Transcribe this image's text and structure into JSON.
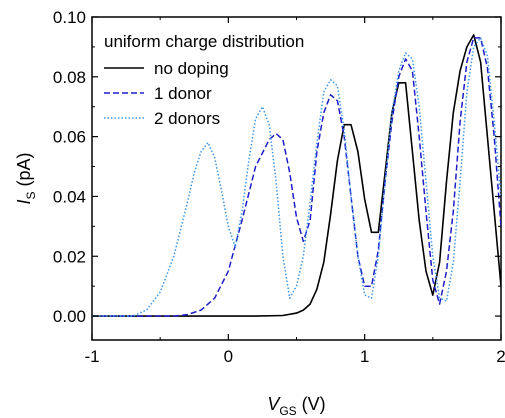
{
  "chart_data": {
    "type": "line",
    "title": "",
    "xlabel": {
      "main": "V",
      "sub": "GS",
      "unit": " (V)"
    },
    "ylabel": {
      "main": "I",
      "sub": "S",
      "unit": " (pA)"
    },
    "xlim": [
      -1,
      2
    ],
    "ylim": [
      -0.008,
      0.1
    ],
    "xticks": [
      -1,
      0,
      1,
      2
    ],
    "xtick_labels": [
      "-1",
      "0",
      "1",
      "2"
    ],
    "yticks": [
      0.0,
      0.02,
      0.04,
      0.06,
      0.08,
      0.1
    ],
    "ytick_labels": [
      "0.00",
      "0.02",
      "0.04",
      "0.06",
      "0.08",
      "0.10"
    ],
    "grid": false,
    "legend_position": "top-left",
    "legend_title": "uniform charge distribution",
    "series": [
      {
        "name": "no doping",
        "color": "#000000",
        "style": "solid",
        "x": [
          -1.0,
          0.2,
          0.4,
          0.5,
          0.55,
          0.6,
          0.65,
          0.7,
          0.75,
          0.8,
          0.85,
          0.9,
          0.95,
          1.0,
          1.05,
          1.1,
          1.15,
          1.2,
          1.25,
          1.3,
          1.35,
          1.4,
          1.45,
          1.5,
          1.55,
          1.6,
          1.65,
          1.7,
          1.75,
          1.8,
          1.85,
          1.9,
          1.95,
          2.0
        ],
        "y": [
          0.0,
          0.0,
          0.0002,
          0.001,
          0.002,
          0.004,
          0.009,
          0.018,
          0.034,
          0.052,
          0.064,
          0.064,
          0.055,
          0.039,
          0.028,
          0.028,
          0.048,
          0.068,
          0.078,
          0.078,
          0.055,
          0.032,
          0.015,
          0.007,
          0.018,
          0.045,
          0.068,
          0.082,
          0.09,
          0.094,
          0.085,
          0.06,
          0.035,
          0.01
        ]
      },
      {
        "name": "1 donor",
        "color": "#1e1ec8",
        "style": "dashed",
        "x": [
          -1.0,
          -0.4,
          -0.3,
          -0.2,
          -0.1,
          0.0,
          0.1,
          0.2,
          0.3,
          0.35,
          0.4,
          0.45,
          0.5,
          0.55,
          0.6,
          0.65,
          0.7,
          0.75,
          0.8,
          0.85,
          0.9,
          0.95,
          1.0,
          1.05,
          1.1,
          1.15,
          1.2,
          1.25,
          1.3,
          1.35,
          1.4,
          1.45,
          1.5,
          1.55,
          1.6,
          1.65,
          1.7,
          1.75,
          1.8,
          1.85,
          1.9,
          1.95,
          2.0
        ],
        "y": [
          0.0,
          0.0,
          0.0005,
          0.002,
          0.006,
          0.015,
          0.032,
          0.05,
          0.059,
          0.061,
          0.059,
          0.048,
          0.033,
          0.025,
          0.032,
          0.055,
          0.068,
          0.074,
          0.072,
          0.06,
          0.04,
          0.02,
          0.01,
          0.01,
          0.022,
          0.045,
          0.065,
          0.08,
          0.086,
          0.082,
          0.06,
          0.035,
          0.012,
          0.004,
          0.015,
          0.035,
          0.065,
          0.085,
          0.093,
          0.093,
          0.083,
          0.06,
          0.03
        ]
      },
      {
        "name": "2 donors",
        "color": "#3c96e6",
        "style": "dotted",
        "x": [
          -1.0,
          -0.7,
          -0.6,
          -0.5,
          -0.4,
          -0.3,
          -0.25,
          -0.2,
          -0.15,
          -0.1,
          -0.05,
          0.0,
          0.05,
          0.1,
          0.15,
          0.2,
          0.25,
          0.3,
          0.35,
          0.4,
          0.45,
          0.5,
          0.55,
          0.6,
          0.65,
          0.7,
          0.75,
          0.8,
          0.85,
          0.9,
          0.95,
          1.0,
          1.05,
          1.1,
          1.15,
          1.2,
          1.25,
          1.3,
          1.35,
          1.4,
          1.45,
          1.5,
          1.55,
          1.6,
          1.65,
          1.7,
          1.75,
          1.8,
          1.85,
          1.9,
          1.95,
          2.0
        ],
        "y": [
          0.0,
          0.0,
          0.002,
          0.008,
          0.02,
          0.038,
          0.048,
          0.055,
          0.058,
          0.053,
          0.042,
          0.03,
          0.023,
          0.035,
          0.052,
          0.066,
          0.07,
          0.064,
          0.045,
          0.02,
          0.006,
          0.01,
          0.02,
          0.038,
          0.058,
          0.075,
          0.079,
          0.077,
          0.062,
          0.04,
          0.02,
          0.007,
          0.006,
          0.02,
          0.045,
          0.068,
          0.082,
          0.088,
          0.086,
          0.07,
          0.045,
          0.02,
          0.006,
          0.005,
          0.018,
          0.045,
          0.075,
          0.09,
          0.093,
          0.087,
          0.065,
          0.04
        ]
      }
    ]
  }
}
